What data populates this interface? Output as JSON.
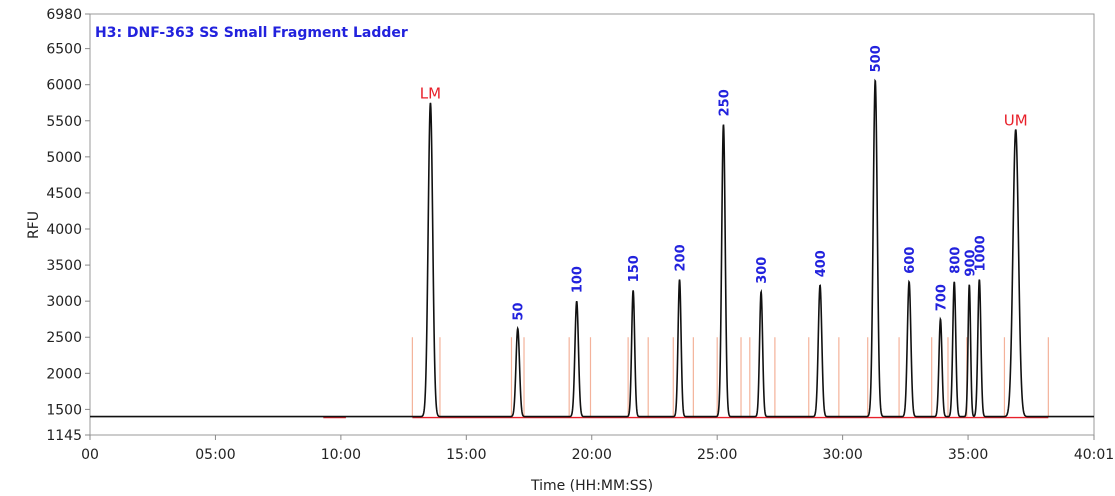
{
  "chart_data": {
    "type": "line",
    "title": "H3: DNF-363 SS Small Fragment Ladder",
    "xlabel": "Time (HH:MM:SS)",
    "ylabel": "RFU",
    "xlim": [
      0,
      40.02
    ],
    "ylim": [
      1145,
      6980
    ],
    "x_ticks": [
      {
        "value": 0,
        "label": "00"
      },
      {
        "value": 5,
        "label": "05:00"
      },
      {
        "value": 10,
        "label": "10:00"
      },
      {
        "value": 15,
        "label": "15:00"
      },
      {
        "value": 20,
        "label": "20:00"
      },
      {
        "value": 25,
        "label": "25:00"
      },
      {
        "value": 30,
        "label": "30:00"
      },
      {
        "value": 35,
        "label": "35:00"
      },
      {
        "value": 40.02,
        "label": "40:01"
      }
    ],
    "y_ticks": [
      {
        "value": 1145,
        "label": "1145"
      },
      {
        "value": 1500,
        "label": "1500"
      },
      {
        "value": 2000,
        "label": "2000"
      },
      {
        "value": 2500,
        "label": "2500"
      },
      {
        "value": 3000,
        "label": "3000"
      },
      {
        "value": 3500,
        "label": "3500"
      },
      {
        "value": 4000,
        "label": "4000"
      },
      {
        "value": 4500,
        "label": "4500"
      },
      {
        "value": 5000,
        "label": "5000"
      },
      {
        "value": 5500,
        "label": "5500"
      },
      {
        "value": 6000,
        "label": "6000"
      },
      {
        "value": 6500,
        "label": "6500"
      },
      {
        "value": 6980,
        "label": "6980"
      }
    ],
    "baseline": 1400,
    "peaks": [
      {
        "label": "LM",
        "x": 13.57,
        "y": 5750,
        "width": 0.09,
        "color": "#e8202a",
        "kind": "marker"
      },
      {
        "label": "50",
        "x": 17.05,
        "y": 2620,
        "width": 0.07,
        "color": "#2222dd",
        "kind": "size"
      },
      {
        "label": "100",
        "x": 19.4,
        "y": 3000,
        "width": 0.07,
        "color": "#2222dd",
        "kind": "size"
      },
      {
        "label": "150",
        "x": 21.65,
        "y": 3150,
        "width": 0.06,
        "color": "#2222dd",
        "kind": "size"
      },
      {
        "label": "200",
        "x": 23.5,
        "y": 3300,
        "width": 0.06,
        "color": "#2222dd",
        "kind": "size"
      },
      {
        "label": "250",
        "x": 25.25,
        "y": 5450,
        "width": 0.07,
        "color": "#2222dd",
        "kind": "size"
      },
      {
        "label": "300",
        "x": 26.75,
        "y": 3130,
        "width": 0.06,
        "color": "#2222dd",
        "kind": "size"
      },
      {
        "label": "400",
        "x": 29.1,
        "y": 3220,
        "width": 0.07,
        "color": "#2222dd",
        "kind": "size"
      },
      {
        "label": "500",
        "x": 31.3,
        "y": 6060,
        "width": 0.08,
        "color": "#2222dd",
        "kind": "size"
      },
      {
        "label": "600",
        "x": 32.65,
        "y": 3270,
        "width": 0.07,
        "color": "#2222dd",
        "kind": "size"
      },
      {
        "label": "700",
        "x": 33.9,
        "y": 2750,
        "width": 0.06,
        "color": "#2222dd",
        "kind": "size"
      },
      {
        "label": "800",
        "x": 34.45,
        "y": 3270,
        "width": 0.06,
        "color": "#2222dd",
        "kind": "size"
      },
      {
        "label": "900",
        "x": 35.05,
        "y": 3230,
        "width": 0.05,
        "color": "#2222dd",
        "kind": "size"
      },
      {
        "label": "1000",
        "x": 35.45,
        "y": 3300,
        "width": 0.06,
        "color": "#2222dd",
        "kind": "size"
      },
      {
        "label": "UM",
        "x": 36.9,
        "y": 5380,
        "width": 0.11,
        "color": "#e8202a",
        "kind": "marker"
      }
    ],
    "boundaries": [
      12.85,
      13.95,
      16.8,
      17.3,
      19.1,
      19.95,
      21.45,
      22.25,
      23.25,
      24.05,
      25.0,
      25.95,
      26.3,
      27.3,
      28.65,
      29.85,
      31.0,
      32.25,
      33.55,
      34.2,
      34.95,
      36.45,
      38.2
    ],
    "boundary_top": 2500,
    "colors": {
      "trace": "#111111",
      "boundary": "#f4b29a",
      "baseline_segment": "#e8202a",
      "title": "#2222dd",
      "axis": "#888888"
    },
    "grid": false
  }
}
